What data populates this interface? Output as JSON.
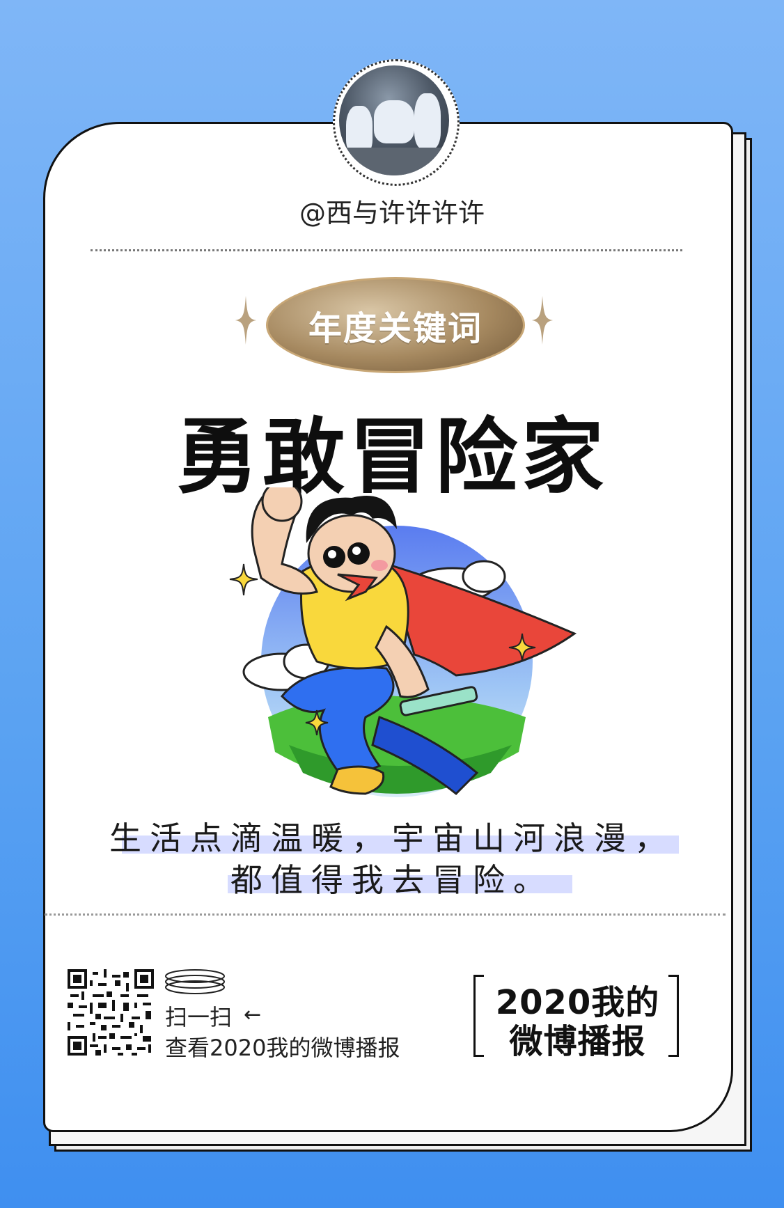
{
  "profile": {
    "username": "@西与许许许许"
  },
  "keyword": {
    "badge": "年度关键词",
    "title": "勇敢冒险家"
  },
  "quote": {
    "line1": "生活点滴温暖，宇宙山河浪漫，",
    "line2": "都值得我去冒险。"
  },
  "footer": {
    "scan_label": "扫一扫",
    "arrow": "←",
    "view_label": "查看2020我的微博播报",
    "brand_line1": "2020我的",
    "brand_line2": "微博播报"
  },
  "colors": {
    "background": "#5aa2f2",
    "card": "#ffffff",
    "gold": "#a68960",
    "quote_highlight": "#d7dcff"
  },
  "icons": [
    "avatar-photo",
    "sparkle-icon",
    "superhero-illustration",
    "qr-code",
    "ring-icon",
    "arrow-left-icon"
  ]
}
